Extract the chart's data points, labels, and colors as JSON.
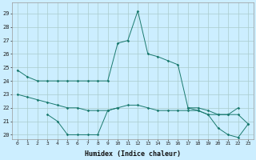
{
  "title": "",
  "xlabel": "Humidex (Indice chaleur)",
  "bg_color": "#cceeff",
  "line_color": "#1a7a6e",
  "grid_color": "#aacccc",
  "x": [
    0,
    1,
    2,
    3,
    4,
    5,
    6,
    7,
    8,
    9,
    10,
    11,
    12,
    13,
    14,
    15,
    16,
    17,
    18,
    19,
    20,
    21,
    22,
    23
  ],
  "line1": [
    24.8,
    24.3,
    24.0,
    24.0,
    24.0,
    24.0,
    24.0,
    24.0,
    24.0,
    24.0,
    26.8,
    27.0,
    29.2,
    26.0,
    25.8,
    25.5,
    25.2,
    22.0,
    22.0,
    21.8,
    21.5,
    21.5,
    22.0,
    null
  ],
  "line2": [
    null,
    null,
    null,
    null,
    null,
    null,
    null,
    null,
    null,
    null,
    null,
    null,
    null,
    null,
    null,
    null,
    null,
    22.0,
    21.8,
    21.5,
    20.5,
    20.0,
    19.8,
    20.8
  ],
  "line3": [
    23.0,
    22.8,
    22.6,
    22.4,
    22.2,
    22.0,
    22.0,
    21.8,
    21.8,
    21.8,
    22.0,
    22.2,
    22.2,
    22.0,
    21.8,
    21.8,
    21.8,
    21.8,
    21.8,
    21.5,
    21.5,
    21.5,
    21.5,
    20.8
  ],
  "line4": [
    null,
    null,
    null,
    21.5,
    21.0,
    20.0,
    20.0,
    20.0,
    20.0,
    21.8,
    22.0,
    null,
    null,
    null,
    null,
    null,
    null,
    null,
    null,
    null,
    null,
    null,
    null,
    null
  ],
  "ylim": [
    19.7,
    29.8
  ],
  "yticks": [
    20,
    21,
    22,
    23,
    24,
    25,
    26,
    27,
    28,
    29
  ],
  "xtick_labels": [
    "0",
    "1",
    "2",
    "3",
    "4",
    "5",
    "6",
    "7",
    "8",
    "9",
    "10",
    "11",
    "12",
    "13",
    "14",
    "15",
    "16",
    "17",
    "18",
    "19",
    "20",
    "21",
    "22",
    "23"
  ]
}
